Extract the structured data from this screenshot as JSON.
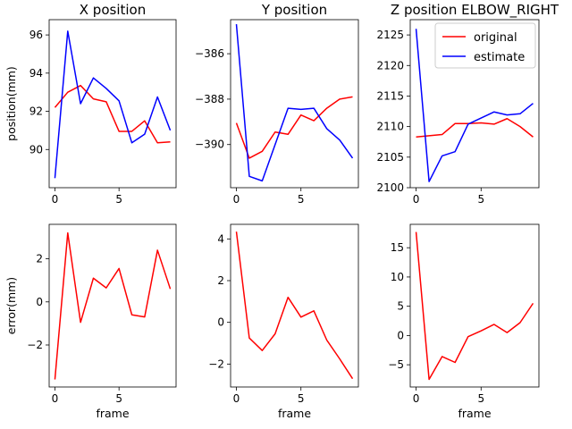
{
  "chart_data": [
    {
      "type": "line",
      "title": "X position",
      "xlabel": "",
      "ylabel": "position(mm)",
      "xlim": [
        -0.45,
        9.45
      ],
      "ylim": [
        88.0,
        96.8
      ],
      "xticks": [
        0,
        5
      ],
      "yticks": [
        90,
        92,
        94,
        96
      ],
      "x": [
        0,
        1,
        2,
        3,
        4,
        5,
        6,
        7,
        8,
        9
      ],
      "series": [
        {
          "name": "original",
          "color": "#ff0000",
          "values": [
            92.2,
            93.0,
            93.35,
            92.65,
            92.5,
            90.95,
            90.95,
            91.5,
            90.35,
            90.4
          ]
        },
        {
          "name": "estimate",
          "color": "#0000ff",
          "values": [
            88.5,
            96.2,
            92.4,
            93.75,
            93.2,
            92.55,
            90.35,
            90.8,
            92.75,
            91.0
          ]
        }
      ]
    },
    {
      "type": "line",
      "title": "Y position",
      "xlabel": "",
      "ylabel": "",
      "xlim": [
        -0.45,
        9.45
      ],
      "ylim": [
        -391.9,
        -384.5
      ],
      "xticks": [
        0,
        5
      ],
      "yticks": [
        -390,
        -388,
        -386
      ],
      "x": [
        0,
        1,
        2,
        3,
        4,
        5,
        6,
        7,
        8,
        9
      ],
      "series": [
        {
          "name": "original",
          "color": "#ff0000",
          "values": [
            -389.05,
            -390.6,
            -390.3,
            -389.45,
            -389.55,
            -388.7,
            -388.95,
            -388.4,
            -388.0,
            -387.9
          ]
        },
        {
          "name": "estimate",
          "color": "#0000ff",
          "values": [
            -384.7,
            -391.4,
            -391.6,
            -390.0,
            -388.4,
            -388.45,
            -388.4,
            -389.3,
            -389.8,
            -390.6
          ]
        }
      ]
    },
    {
      "type": "line",
      "title": "Z position ELBOW_RIGHT",
      "xlabel": "",
      "ylabel": "",
      "xlim": [
        -0.45,
        9.45
      ],
      "ylim": [
        2100.0,
        2127.5
      ],
      "xticks": [
        0,
        5
      ],
      "yticks": [
        2100,
        2105,
        2110,
        2115,
        2120,
        2125
      ],
      "legend": "top-right",
      "x": [
        0,
        1,
        2,
        3,
        4,
        5,
        6,
        7,
        8,
        9
      ],
      "series": [
        {
          "name": "original",
          "color": "#ff0000",
          "values": [
            2108.3,
            2108.5,
            2108.7,
            2110.5,
            2110.5,
            2110.6,
            2110.4,
            2111.3,
            2110.0,
            2108.3
          ]
        },
        {
          "name": "estimate",
          "color": "#0000ff",
          "values": [
            2126.0,
            2101.0,
            2105.2,
            2105.9,
            2110.4,
            2111.4,
            2112.4,
            2111.9,
            2112.1,
            2113.8
          ]
        }
      ]
    },
    {
      "type": "line",
      "title": "",
      "xlabel": "frame",
      "ylabel": "error(mm)",
      "xlim": [
        -0.45,
        9.45
      ],
      "ylim": [
        -3.95,
        3.6
      ],
      "xticks": [
        0,
        5
      ],
      "yticks": [
        -2,
        0,
        2
      ],
      "x": [
        0,
        1,
        2,
        3,
        4,
        5,
        6,
        7,
        8,
        9
      ],
      "series": [
        {
          "name": "error",
          "color": "#ff0000",
          "values": [
            -3.6,
            3.2,
            -0.95,
            1.1,
            0.65,
            1.55,
            -0.6,
            -0.7,
            2.4,
            0.6
          ]
        }
      ]
    },
    {
      "type": "line",
      "title": "",
      "xlabel": "frame",
      "ylabel": "",
      "xlim": [
        -0.45,
        9.45
      ],
      "ylim": [
        -3.1,
        4.7
      ],
      "xticks": [
        0,
        5
      ],
      "yticks": [
        -2,
        0,
        2,
        4
      ],
      "x": [
        0,
        1,
        2,
        3,
        4,
        5,
        6,
        7,
        8,
        9
      ],
      "series": [
        {
          "name": "error",
          "color": "#ff0000",
          "values": [
            4.35,
            -0.75,
            -1.35,
            -0.55,
            1.2,
            0.25,
            0.55,
            -0.85,
            -1.75,
            -2.7
          ]
        }
      ]
    },
    {
      "type": "line",
      "title": "",
      "xlabel": "frame",
      "ylabel": "",
      "xlim": [
        -0.45,
        9.45
      ],
      "ylim": [
        -8.8,
        19.0
      ],
      "xticks": [
        0,
        5
      ],
      "yticks": [
        -5,
        0,
        5,
        10,
        15
      ],
      "x": [
        0,
        1,
        2,
        3,
        4,
        5,
        6,
        7,
        8,
        9
      ],
      "series": [
        {
          "name": "error",
          "color": "#ff0000",
          "values": [
            17.7,
            -7.5,
            -3.6,
            -4.6,
            -0.2,
            0.8,
            1.9,
            0.5,
            2.2,
            5.5
          ]
        }
      ]
    }
  ]
}
